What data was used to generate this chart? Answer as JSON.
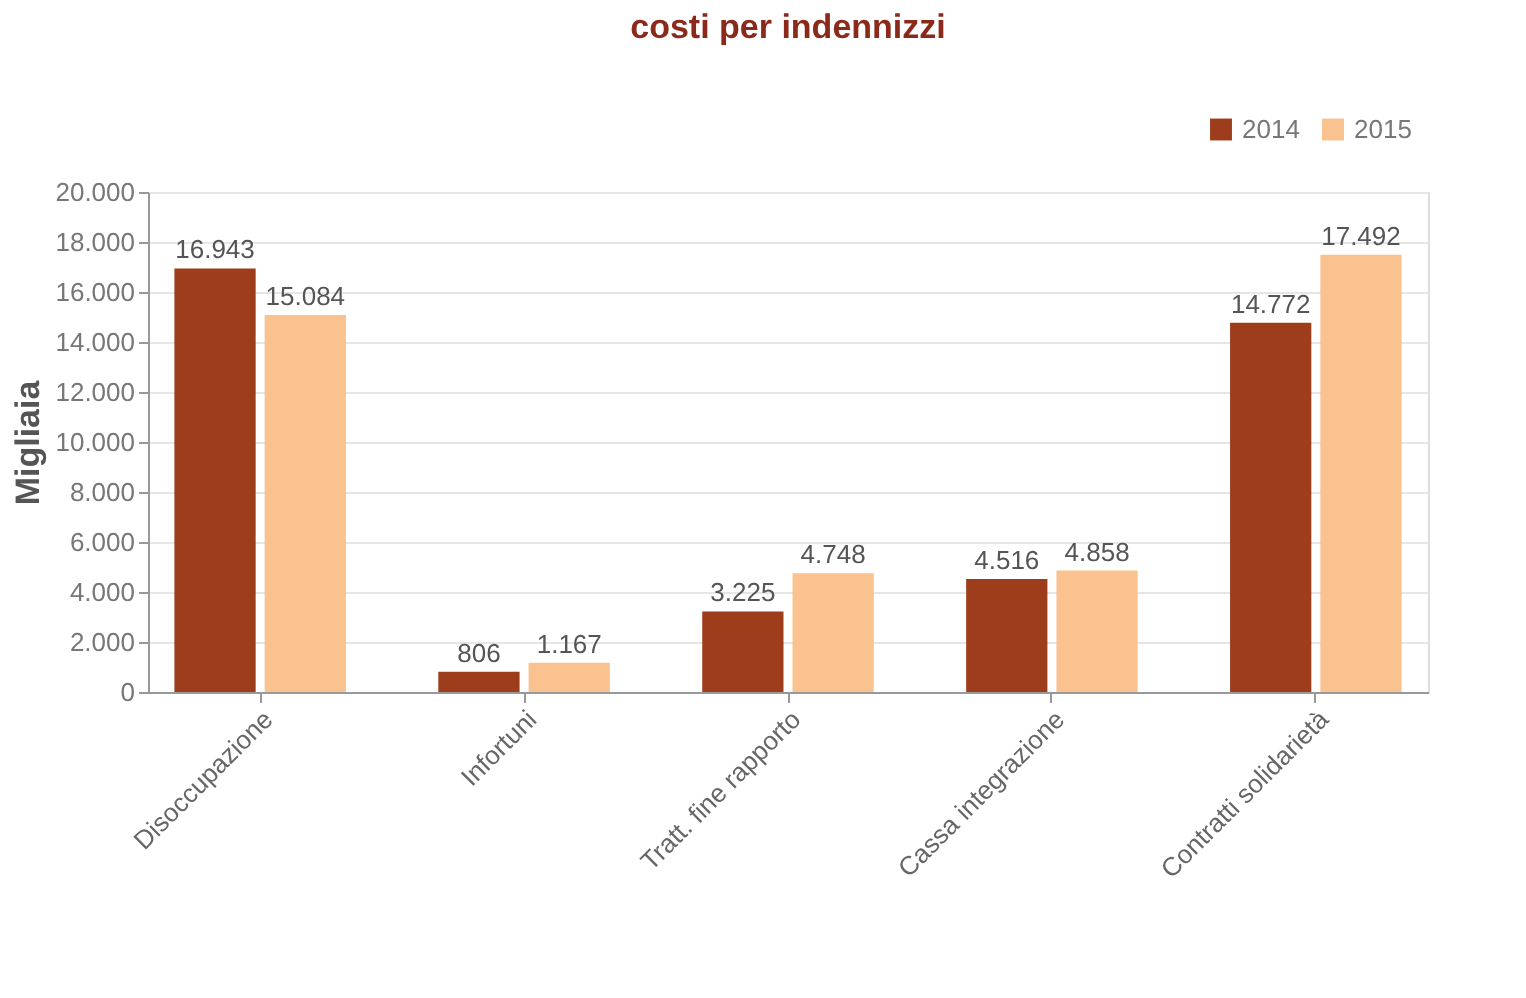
{
  "chart_data": {
    "type": "bar",
    "title": "costi per indennizzi",
    "ylabel": "Migliaia",
    "categories": [
      "Disoccupazione",
      "Infortuni",
      "Tratt. fine rapporto",
      "Cassa integrazione",
      "Contratti solidarietà"
    ],
    "series": [
      {
        "name": "2014",
        "color": "#9e3d1c",
        "values": [
          16943,
          806,
          3225,
          4516,
          14772
        ],
        "value_labels": [
          "16.943",
          "806",
          "3.225",
          "4.516",
          "14.772"
        ]
      },
      {
        "name": "2015",
        "color": "#f9c28e",
        "values": [
          15084,
          1167,
          4748,
          4858,
          17492
        ],
        "value_labels": [
          "15.084",
          "1.167",
          "4.748",
          "4.858",
          "17.492"
        ]
      }
    ],
    "ylim": [
      0,
      20000
    ],
    "yticks": [
      0,
      {
        "value": 2000,
        "label": "2.000"
      },
      {
        "value": 4000,
        "label": "4.000"
      },
      {
        "value": 6000,
        "label": "6.000"
      },
      {
        "value": 8000,
        "label": "8.000"
      },
      {
        "value": 10000,
        "label": "10.000"
      },
      {
        "value": 12000,
        "label": "12.000"
      },
      {
        "value": 14000,
        "label": "14.000"
      },
      {
        "value": 16000,
        "label": "16.000"
      },
      {
        "value": 18000,
        "label": "18.000"
      },
      {
        "value": 20000,
        "label": "20.000"
      }
    ],
    "grid": "y",
    "legend": "top right"
  }
}
